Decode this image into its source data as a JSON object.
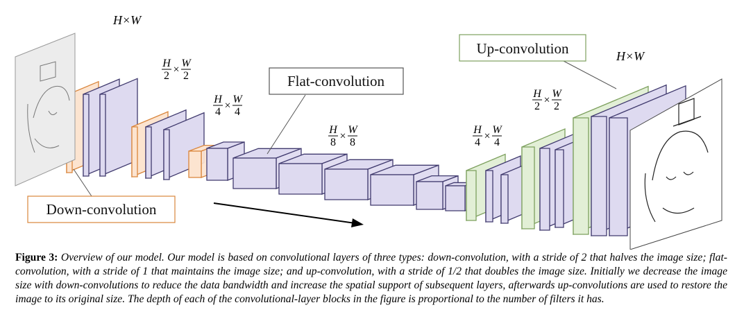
{
  "figure": {
    "labels": {
      "down_convolution": "Down-convolution",
      "flat_convolution": "Flat-convolution",
      "up_convolution": "Up-convolution"
    },
    "sizes": {
      "full_left": "H×W",
      "full_right": "H×W",
      "half_left": {
        "num1": "H",
        "den1": "2",
        "num2": "W",
        "den2": "2"
      },
      "quarter_left": {
        "num1": "H",
        "den1": "4",
        "num2": "W",
        "den2": "4"
      },
      "eighth": {
        "num1": "H",
        "den1": "8",
        "num2": "W",
        "den2": "8"
      },
      "quarter_right": {
        "num1": "H",
        "den1": "4",
        "num2": "W",
        "den2": "4"
      },
      "half_right": {
        "num1": "H",
        "den1": "2",
        "num2": "W",
        "den2": "2"
      }
    },
    "colors": {
      "down": "#fce4d0",
      "down_stroke": "#d9853b",
      "flat": "#dedaf0",
      "flat_stroke": "#403a6e",
      "up": "#e2efd6",
      "up_stroke": "#7da05e"
    }
  },
  "caption": {
    "label": "Figure 3:",
    "text": "Overview of our model. Our model is based on convolutional layers of three types: down-convolution, with a stride of 2 that halves the image size; flat-convolution, with a stride of 1 that maintains the image size; and up-convolution, with a stride of 1/2 that doubles the image size. Initially we decrease the image size with down-convolutions to reduce the data bandwidth and increase the spatial support of subsequent layers, afterwards up-convolutions are used to restore the image to its original size. The depth of each of the convolutional-layer blocks in the figure is proportional to the number of filters it has."
  }
}
